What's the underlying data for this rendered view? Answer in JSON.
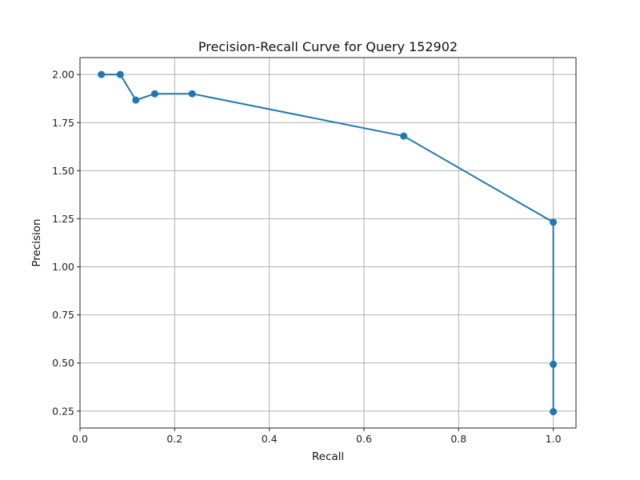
{
  "chart_data": {
    "type": "line",
    "title": "Precision-Recall Curve for Query 152902",
    "xlabel": "Recall",
    "ylabel": "Precision",
    "xlim": [
      -0.0,
      1.048
    ],
    "ylim": [
      0.162,
      2.088
    ],
    "xticks": [
      0.0,
      0.2,
      0.4,
      0.6,
      0.8,
      1.0
    ],
    "xtick_labels": [
      "0.0",
      "0.2",
      "0.4",
      "0.6",
      "0.8",
      "1.0"
    ],
    "yticks": [
      0.25,
      0.5,
      0.75,
      1.0,
      1.25,
      1.5,
      1.75,
      2.0
    ],
    "ytick_labels": [
      "0.25",
      "0.50",
      "0.75",
      "1.00",
      "1.25",
      "1.50",
      "1.75",
      "2.00"
    ],
    "grid": true,
    "series": [
      {
        "color": "#1f77b4",
        "marker": "circle",
        "x": [
          0.045,
          0.085,
          0.118,
          0.158,
          0.237,
          0.684,
          1.0,
          1.0,
          1.0
        ],
        "y": [
          2.0,
          2.0,
          1.867,
          1.9,
          1.9,
          1.68,
          1.232,
          0.493,
          0.247
        ]
      }
    ]
  }
}
